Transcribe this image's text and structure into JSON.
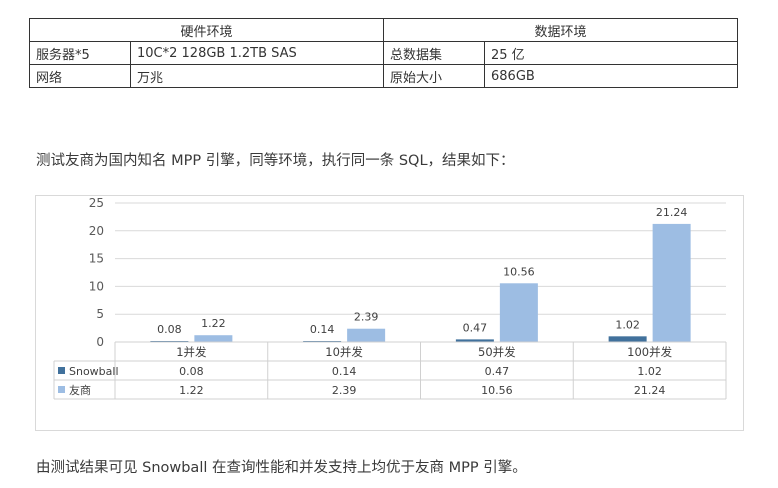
{
  "env_table": {
    "header_hardware": "硬件环境",
    "header_data": "数据环境",
    "rows": [
      {
        "k1": "服务器*5",
        "v1": "10C*2 128GB 1.2TB SAS",
        "k2": "总数据集",
        "v2": "25 亿"
      },
      {
        "k1": "网络",
        "v1": "万兆",
        "k2": "原始大小",
        "v2": "686GB"
      }
    ]
  },
  "intro_text": "测试友商为国内知名 MPP 引擎，同等环境，执行同一条 SQL，结果如下：",
  "conclusion_text": "由测试结果可见 Snowball 在查询性能和并发支持上均优于友商 MPP 引擎。",
  "chart_data": {
    "type": "bar",
    "categories": [
      "1并发",
      "10并发",
      "50并发",
      "100并发"
    ],
    "series": [
      {
        "name": "Snowball",
        "values": [
          0.08,
          0.14,
          0.47,
          1.02
        ],
        "color": "#41719c"
      },
      {
        "name": "友商",
        "values": [
          1.22,
          2.39,
          10.56,
          21.24
        ],
        "color": "#9dbde3"
      }
    ],
    "yticks": [
      "0",
      "5",
      "10",
      "15",
      "20",
      "25"
    ],
    "ylim": [
      0,
      25
    ],
    "grid": true,
    "legend": "data-table"
  }
}
